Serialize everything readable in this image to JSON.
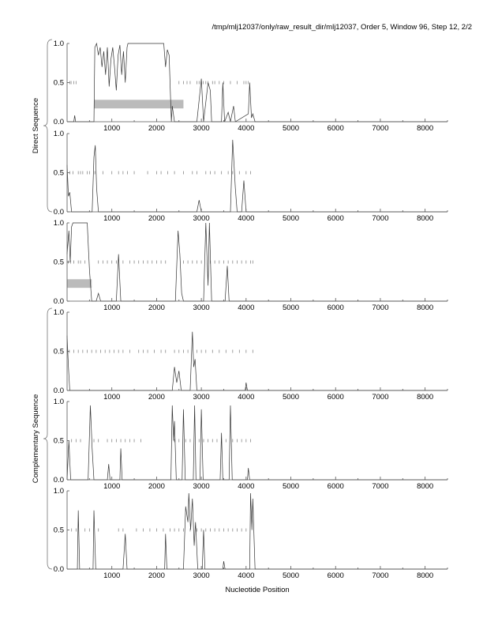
{
  "title": "/tmp/mlj12037/only/raw_result_dir/mlj12037, Order 5, Window 96, Step 12, 2/2",
  "chart_data": {
    "type": "line",
    "xlabel": "Nucleotide Position",
    "group_labels": [
      "Direct Sequence",
      "Complementary Sequence"
    ],
    "xlim": [
      0,
      8500
    ],
    "ylim": [
      0,
      1
    ],
    "xticks": [
      1000,
      2000,
      3000,
      4000,
      5000,
      6000,
      7000,
      8000
    ],
    "xtick_labels": [
      "1000",
      "2000",
      "3000",
      "4000",
      "5000",
      "6000",
      "7000",
      "8000"
    ],
    "yticks": [
      0,
      0.5,
      1
    ],
    "ytick_labels": [
      "0.0",
      "0.5",
      "1.0"
    ],
    "colors": {
      "curve": "#333333",
      "orf": "#888888",
      "box": "#bbbbbb",
      "axis": "#555555"
    },
    "panels": [
      {
        "curve": [
          [
            0,
            0
          ],
          [
            150,
            0
          ],
          [
            170,
            0.08
          ],
          [
            190,
            0
          ],
          [
            600,
            0
          ],
          [
            620,
            0.95
          ],
          [
            660,
            1.0
          ],
          [
            700,
            0.85
          ],
          [
            740,
            0.95
          ],
          [
            780,
            0.7
          ],
          [
            820,
            0.9
          ],
          [
            860,
            0.6
          ],
          [
            900,
            0.95
          ],
          [
            940,
            0.45
          ],
          [
            980,
            0.8
          ],
          [
            1020,
            0.95
          ],
          [
            1060,
            0.7
          ],
          [
            1100,
            0.4
          ],
          [
            1140,
            0.85
          ],
          [
            1180,
            0.98
          ],
          [
            1220,
            0.6
          ],
          [
            1260,
            0.9
          ],
          [
            1300,
            0.5
          ],
          [
            1340,
            0.95
          ],
          [
            1360,
            1.0
          ],
          [
            2160,
            1.0
          ],
          [
            2200,
            0.7
          ],
          [
            2240,
            0.92
          ],
          [
            2280,
            0.85
          ],
          [
            2330,
            0.0
          ],
          [
            2350,
            0.2
          ],
          [
            2400,
            0.0
          ],
          [
            2900,
            0.0
          ],
          [
            3000,
            0.55
          ],
          [
            3050,
            0
          ],
          [
            3150,
            0.5
          ],
          [
            3200,
            0.4
          ],
          [
            3230,
            0
          ],
          [
            3450,
            0
          ],
          [
            3480,
            0.5
          ],
          [
            3520,
            0
          ],
          [
            3600,
            0.12
          ],
          [
            3650,
            0
          ],
          [
            3720,
            0.2
          ],
          [
            3760,
            0
          ],
          [
            4050,
            0.1
          ],
          [
            4080,
            0.5
          ],
          [
            4120,
            0.05
          ],
          [
            4150,
            0.1
          ],
          [
            4200,
            0
          ],
          [
            8500,
            0
          ]
        ],
        "orfs": [
          60,
          90,
          150,
          200,
          2500,
          2600,
          2680,
          2750,
          2900,
          2950,
          3000,
          3040,
          3100,
          3150,
          3250,
          3300,
          3400,
          3500,
          3650,
          3800,
          3950,
          4000,
          4050
        ],
        "boxes": [
          [
            600,
            2600
          ]
        ]
      },
      {
        "curve": [
          [
            0,
            0.6
          ],
          [
            30,
            0.2
          ],
          [
            60,
            0.25
          ],
          [
            100,
            0
          ],
          [
            560,
            0
          ],
          [
            600,
            0.7
          ],
          [
            630,
            0.85
          ],
          [
            660,
            0.3
          ],
          [
            700,
            0
          ],
          [
            2900,
            0
          ],
          [
            2950,
            0.15
          ],
          [
            3000,
            0
          ],
          [
            3650,
            0
          ],
          [
            3700,
            0.92
          ],
          [
            3760,
            0.3
          ],
          [
            3800,
            0
          ],
          [
            3900,
            0
          ],
          [
            3950,
            0.4
          ],
          [
            4000,
            0
          ],
          [
            8500,
            0
          ]
        ],
        "orfs": [
          60,
          130,
          250,
          300,
          350,
          450,
          500,
          620,
          800,
          1000,
          1150,
          1250,
          1350,
          1500,
          1800,
          2000,
          2100,
          2250,
          2400,
          2600,
          2800,
          2900,
          3100,
          3200,
          3300,
          3450,
          3600,
          3700,
          3850,
          4000,
          4100
        ],
        "boxes": []
      },
      {
        "curve": [
          [
            0,
            0.6
          ],
          [
            40,
            0.9
          ],
          [
            70,
            0.5
          ],
          [
            100,
            0.95
          ],
          [
            130,
            1.0
          ],
          [
            450,
            1.0
          ],
          [
            500,
            0.4
          ],
          [
            550,
            0
          ],
          [
            650,
            0
          ],
          [
            700,
            0.1
          ],
          [
            750,
            0
          ],
          [
            1100,
            0
          ],
          [
            1150,
            0.6
          ],
          [
            1200,
            0
          ],
          [
            2420,
            0
          ],
          [
            2480,
            0.9
          ],
          [
            2520,
            0.6
          ],
          [
            2560,
            0.1
          ],
          [
            2600,
            0
          ],
          [
            3050,
            0
          ],
          [
            3100,
            1.0
          ],
          [
            3150,
            0.2
          ],
          [
            3180,
            1.0
          ],
          [
            3230,
            0
          ],
          [
            3530,
            0
          ],
          [
            3580,
            0.45
          ],
          [
            3620,
            0
          ],
          [
            8500,
            0
          ]
        ],
        "orfs": [
          30,
          80,
          150,
          250,
          300,
          400,
          700,
          800,
          900,
          1000,
          1100,
          1250,
          1400,
          1500,
          1600,
          1700,
          1800,
          1900,
          2000,
          2100,
          2200,
          2600,
          2700,
          2800,
          2900,
          3000,
          3200,
          3300,
          3400,
          3500,
          3600,
          3700,
          3800,
          3900,
          4000,
          4100,
          4150
        ],
        "boxes": [
          [
            0,
            550
          ]
        ]
      },
      {
        "curve": [
          [
            0,
            0.7
          ],
          [
            30,
            0.3
          ],
          [
            60,
            0
          ],
          [
            2350,
            0
          ],
          [
            2400,
            0.3
          ],
          [
            2450,
            0.1
          ],
          [
            2500,
            0.25
          ],
          [
            2550,
            0
          ],
          [
            2750,
            0
          ],
          [
            2800,
            0.75
          ],
          [
            2830,
            0.3
          ],
          [
            2860,
            0.4
          ],
          [
            2900,
            0
          ],
          [
            3980,
            0
          ],
          [
            4000,
            0.1
          ],
          [
            4030,
            0
          ],
          [
            8500,
            0
          ]
        ],
        "orfs": [
          50,
          150,
          250,
          350,
          450,
          550,
          650,
          750,
          850,
          950,
          1050,
          1150,
          1250,
          1400,
          1600,
          1700,
          1800,
          1950,
          2100,
          2200,
          2400,
          2500,
          2600,
          2700,
          2900,
          3000,
          3100,
          3250,
          3400,
          3550,
          3700,
          3850,
          4000,
          4150
        ],
        "boxes": []
      },
      {
        "curve": [
          [
            0,
            0
          ],
          [
            40,
            0.5
          ],
          [
            80,
            0
          ],
          [
            470,
            0
          ],
          [
            520,
            0.95
          ],
          [
            560,
            0.4
          ],
          [
            600,
            0
          ],
          [
            900,
            0
          ],
          [
            930,
            0.2
          ],
          [
            960,
            0
          ],
          [
            1180,
            0
          ],
          [
            1200,
            0.4
          ],
          [
            1230,
            0
          ],
          [
            2320,
            0
          ],
          [
            2350,
            0.95
          ],
          [
            2380,
            0.5
          ],
          [
            2400,
            0.75
          ],
          [
            2440,
            0
          ],
          [
            2570,
            0
          ],
          [
            2600,
            0.9
          ],
          [
            2640,
            0
          ],
          [
            2820,
            0
          ],
          [
            2850,
            0.95
          ],
          [
            2880,
            0
          ],
          [
            2970,
            0
          ],
          [
            3000,
            0.9
          ],
          [
            3040,
            0
          ],
          [
            3420,
            0
          ],
          [
            3450,
            0.6
          ],
          [
            3480,
            0
          ],
          [
            3620,
            0
          ],
          [
            3650,
            0.95
          ],
          [
            3690,
            0
          ],
          [
            4030,
            0
          ],
          [
            4050,
            0.15
          ],
          [
            4080,
            0
          ],
          [
            8500,
            0
          ]
        ],
        "orfs": [
          100,
          200,
          300,
          600,
          700,
          900,
          1000,
          1100,
          1200,
          1300,
          1400,
          1500,
          1650,
          2400,
          2500,
          2650,
          2750,
          2950,
          3050,
          3150,
          3250,
          3350,
          3450,
          3550,
          3700,
          3800,
          3900,
          4000,
          4100
        ],
        "boxes": []
      },
      {
        "curve": [
          [
            0,
            0
          ],
          [
            230,
            0
          ],
          [
            250,
            0.75
          ],
          [
            280,
            0
          ],
          [
            580,
            0
          ],
          [
            600,
            0.75
          ],
          [
            640,
            0
          ],
          [
            1250,
            0
          ],
          [
            1300,
            0.45
          ],
          [
            1340,
            0
          ],
          [
            2180,
            0
          ],
          [
            2200,
            0.45
          ],
          [
            2230,
            0
          ],
          [
            2600,
            0
          ],
          [
            2650,
            0.8
          ],
          [
            2700,
            0.6
          ],
          [
            2720,
            0.97
          ],
          [
            2760,
            0.5
          ],
          [
            2800,
            0.9
          ],
          [
            2840,
            0.3
          ],
          [
            2870,
            0.6
          ],
          [
            2920,
            0
          ],
          [
            3020,
            0
          ],
          [
            3050,
            0.5
          ],
          [
            3080,
            0
          ],
          [
            3480,
            0
          ],
          [
            3500,
            0.1
          ],
          [
            3530,
            0
          ],
          [
            4080,
            0
          ],
          [
            4100,
            0.97
          ],
          [
            4130,
            0.5
          ],
          [
            4150,
            0.9
          ],
          [
            4200,
            0
          ],
          [
            8500,
            0
          ]
        ],
        "orfs": [
          100,
          200,
          400,
          500,
          700,
          1150,
          1250,
          1550,
          1700,
          1850,
          2000,
          2150,
          2300,
          2400,
          2500,
          2600,
          2750,
          2900,
          3000,
          3100,
          3200,
          3300,
          3400,
          3500,
          3600,
          3700,
          3800,
          3900,
          4000
        ],
        "boxes": []
      }
    ]
  }
}
